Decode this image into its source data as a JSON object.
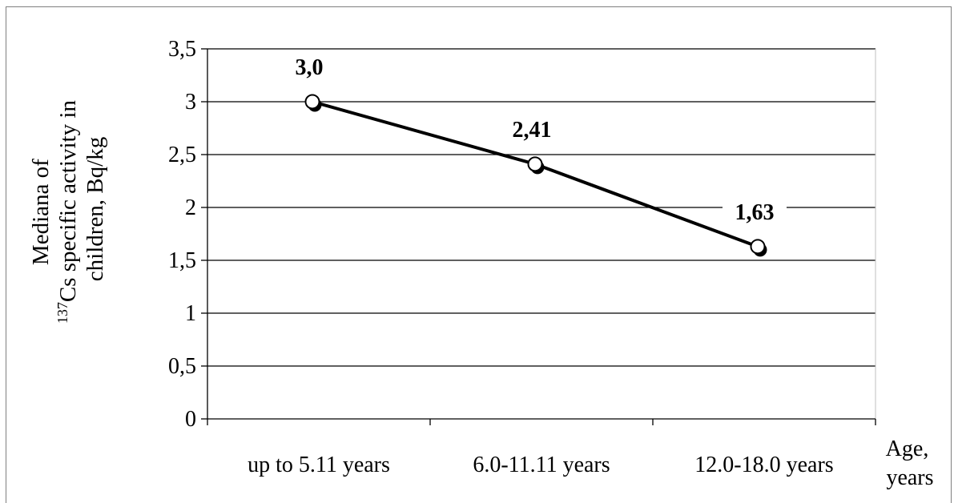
{
  "chart_data": {
    "type": "line",
    "categories": [
      "up to 5.11 years",
      "6.0-11.11 years",
      "12.0-18.0 years"
    ],
    "series": [
      {
        "values": [
          3.0,
          2.41,
          1.63
        ],
        "data_labels": [
          "3,0",
          "2,41",
          "1,63"
        ]
      }
    ],
    "ylabel_lines": [
      "Mediana of",
      "137",
      "Cs specific activity in",
      "children, Bq/kg"
    ],
    "xlabel_lines": [
      "Age,",
      "years"
    ],
    "ylim": [
      0,
      3.5
    ],
    "yticks": [
      "0",
      "0,5",
      "1",
      "1,5",
      "2",
      "2,5",
      "3",
      "3,5"
    ],
    "grid": true,
    "line_color": "#000000",
    "marker_color": "#ffffff"
  }
}
